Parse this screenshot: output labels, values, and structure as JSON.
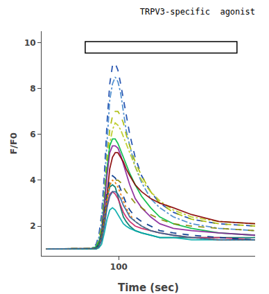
{
  "chart_data": {
    "type": "line",
    "title": "TRPV3-specific  agonist",
    "xlabel": "Time (sec)",
    "ylabel": "F/F0",
    "xlim": [
      15,
      250
    ],
    "ylim": [
      0.7,
      10.5
    ],
    "xticks": [
      100
    ],
    "yticks": [
      2,
      4,
      6,
      8,
      10
    ],
    "grid": false,
    "rect_x": [
      63,
      230
    ],
    "rect_y": [
      9.55,
      10.05
    ],
    "x": [
      20,
      40,
      55,
      65,
      70,
      75,
      78,
      81,
      84,
      87,
      90,
      93,
      96,
      99,
      102,
      105,
      108,
      112,
      118,
      125,
      135,
      145,
      160,
      180,
      210,
      250
    ],
    "series": [
      {
        "color": "#1144aa",
        "line_style": "dashed",
        "values": [
          1.0,
          1.0,
          1.0,
          1.0,
          1.05,
          1.2,
          1.6,
          2.5,
          4.2,
          6.5,
          8.2,
          9.0,
          9.1,
          8.8,
          8.2,
          7.5,
          6.8,
          6.0,
          5.0,
          4.2,
          3.5,
          3.0,
          2.6,
          2.3,
          2.1,
          2.0
        ]
      },
      {
        "color": "#4488cc",
        "line_style": "dashdot",
        "values": [
          1.0,
          1.0,
          1.0,
          1.0,
          1.03,
          1.15,
          1.5,
          2.2,
          3.8,
          5.8,
          7.5,
          8.2,
          8.5,
          8.3,
          7.8,
          7.0,
          6.2,
          5.5,
          4.6,
          3.9,
          3.2,
          2.8,
          2.4,
          2.1,
          1.9,
          1.8
        ]
      },
      {
        "color": "#aabb00",
        "line_style": "dashed",
        "values": [
          1.0,
          1.0,
          1.0,
          1.0,
          1.02,
          1.1,
          1.4,
          2.0,
          3.3,
          5.0,
          6.2,
          6.8,
          7.0,
          7.0,
          6.8,
          6.5,
          6.0,
          5.5,
          4.8,
          4.2,
          3.5,
          3.0,
          2.6,
          2.3,
          2.1,
          2.0
        ]
      },
      {
        "color": "#bbcc22",
        "line_style": "dashdot",
        "values": [
          1.0,
          1.0,
          1.0,
          1.0,
          1.02,
          1.08,
          1.3,
          1.8,
          3.0,
          4.5,
          5.6,
          6.2,
          6.5,
          6.4,
          6.2,
          5.9,
          5.6,
          5.2,
          4.6,
          4.0,
          3.5,
          3.1,
          2.7,
          2.4,
          2.2,
          2.1
        ]
      },
      {
        "color": "#00bb44",
        "line_style": "solid",
        "values": [
          1.0,
          1.0,
          1.0,
          1.0,
          1.02,
          1.1,
          1.3,
          1.8,
          3.0,
          4.5,
          5.5,
          5.8,
          5.8,
          5.6,
          5.3,
          5.0,
          4.7,
          4.3,
          3.8,
          3.3,
          2.8,
          2.4,
          2.1,
          1.9,
          1.7,
          1.6
        ]
      },
      {
        "color": "#882299",
        "line_style": "solid",
        "values": [
          1.0,
          1.0,
          1.0,
          1.0,
          1.0,
          1.05,
          1.2,
          1.7,
          2.8,
          4.2,
          5.2,
          5.5,
          5.5,
          5.4,
          5.1,
          4.7,
          4.3,
          3.8,
          3.2,
          2.8,
          2.4,
          2.1,
          1.9,
          1.8,
          1.7,
          1.6
        ]
      },
      {
        "color": "#880000",
        "line_style": "solid",
        "values": [
          1.0,
          1.0,
          1.0,
          1.0,
          1.0,
          1.0,
          1.1,
          1.4,
          2.2,
          3.4,
          4.5,
          5.0,
          5.2,
          5.2,
          5.0,
          4.8,
          4.5,
          4.2,
          3.8,
          3.5,
          3.2,
          3.0,
          2.8,
          2.5,
          2.2,
          2.1
        ]
      },
      {
        "color": "#007766",
        "line_style": "solid",
        "values": [
          1.0,
          1.0,
          1.0,
          1.0,
          1.0,
          1.05,
          1.2,
          1.6,
          2.3,
          3.2,
          3.7,
          3.8,
          3.7,
          3.3,
          2.8,
          2.4,
          2.2,
          2.0,
          1.8,
          1.7,
          1.6,
          1.5,
          1.5,
          1.5,
          1.5,
          1.5
        ]
      },
      {
        "color": "#cc2266",
        "line_style": "solid",
        "values": [
          1.0,
          1.0,
          1.0,
          1.0,
          1.0,
          1.02,
          1.1,
          1.4,
          2.0,
          2.9,
          3.4,
          3.5,
          3.4,
          3.2,
          2.9,
          2.6,
          2.4,
          2.2,
          2.0,
          1.9,
          1.8,
          1.7,
          1.6,
          1.5,
          1.5,
          1.4
        ]
      },
      {
        "color": "#003388",
        "line_style": "dashed",
        "values": [
          1.0,
          1.0,
          1.0,
          1.0,
          1.0,
          1.02,
          1.15,
          1.6,
          2.5,
          3.5,
          4.0,
          4.2,
          4.1,
          3.9,
          3.6,
          3.3,
          3.0,
          2.7,
          2.4,
          2.2,
          2.0,
          1.8,
          1.7,
          1.6,
          1.5,
          1.4
        ]
      },
      {
        "color": "#888800",
        "line_style": "dashed",
        "values": [
          1.0,
          1.0,
          1.0,
          1.0,
          1.0,
          1.02,
          1.1,
          1.5,
          2.3,
          3.2,
          3.8,
          4.0,
          4.0,
          4.0,
          3.9,
          3.7,
          3.5,
          3.3,
          3.0,
          2.8,
          2.5,
          2.3,
          2.1,
          2.0,
          1.9,
          1.8
        ]
      },
      {
        "color": "#00aaaa",
        "line_style": "solid",
        "values": [
          1.0,
          1.0,
          1.0,
          1.0,
          1.0,
          1.0,
          1.05,
          1.2,
          1.7,
          2.3,
          2.7,
          2.8,
          2.7,
          2.5,
          2.3,
          2.1,
          2.0,
          1.9,
          1.8,
          1.7,
          1.6,
          1.5,
          1.5,
          1.4,
          1.4,
          1.4
        ]
      },
      {
        "color": "#ee7700",
        "line_style": "dotted",
        "values": [
          1.0,
          1.0,
          1.0,
          1.0,
          1.0,
          1.02,
          1.1,
          1.5,
          2.2,
          3.2,
          3.8,
          4.0,
          3.9,
          3.7,
          3.4,
          3.1,
          2.8,
          2.5,
          2.2,
          2.0,
          1.8,
          1.7,
          1.6,
          1.5,
          1.4,
          1.4
        ]
      },
      {
        "color": "#336699",
        "line_style": "solid",
        "values": [
          1.0,
          1.0,
          1.0,
          1.0,
          1.0,
          1.02,
          1.1,
          1.4,
          2.0,
          2.8,
          3.3,
          3.5,
          3.5,
          3.4,
          3.2,
          2.9,
          2.7,
          2.4,
          2.2,
          2.0,
          1.8,
          1.7,
          1.6,
          1.5,
          1.4,
          1.4
        ]
      }
    ]
  }
}
